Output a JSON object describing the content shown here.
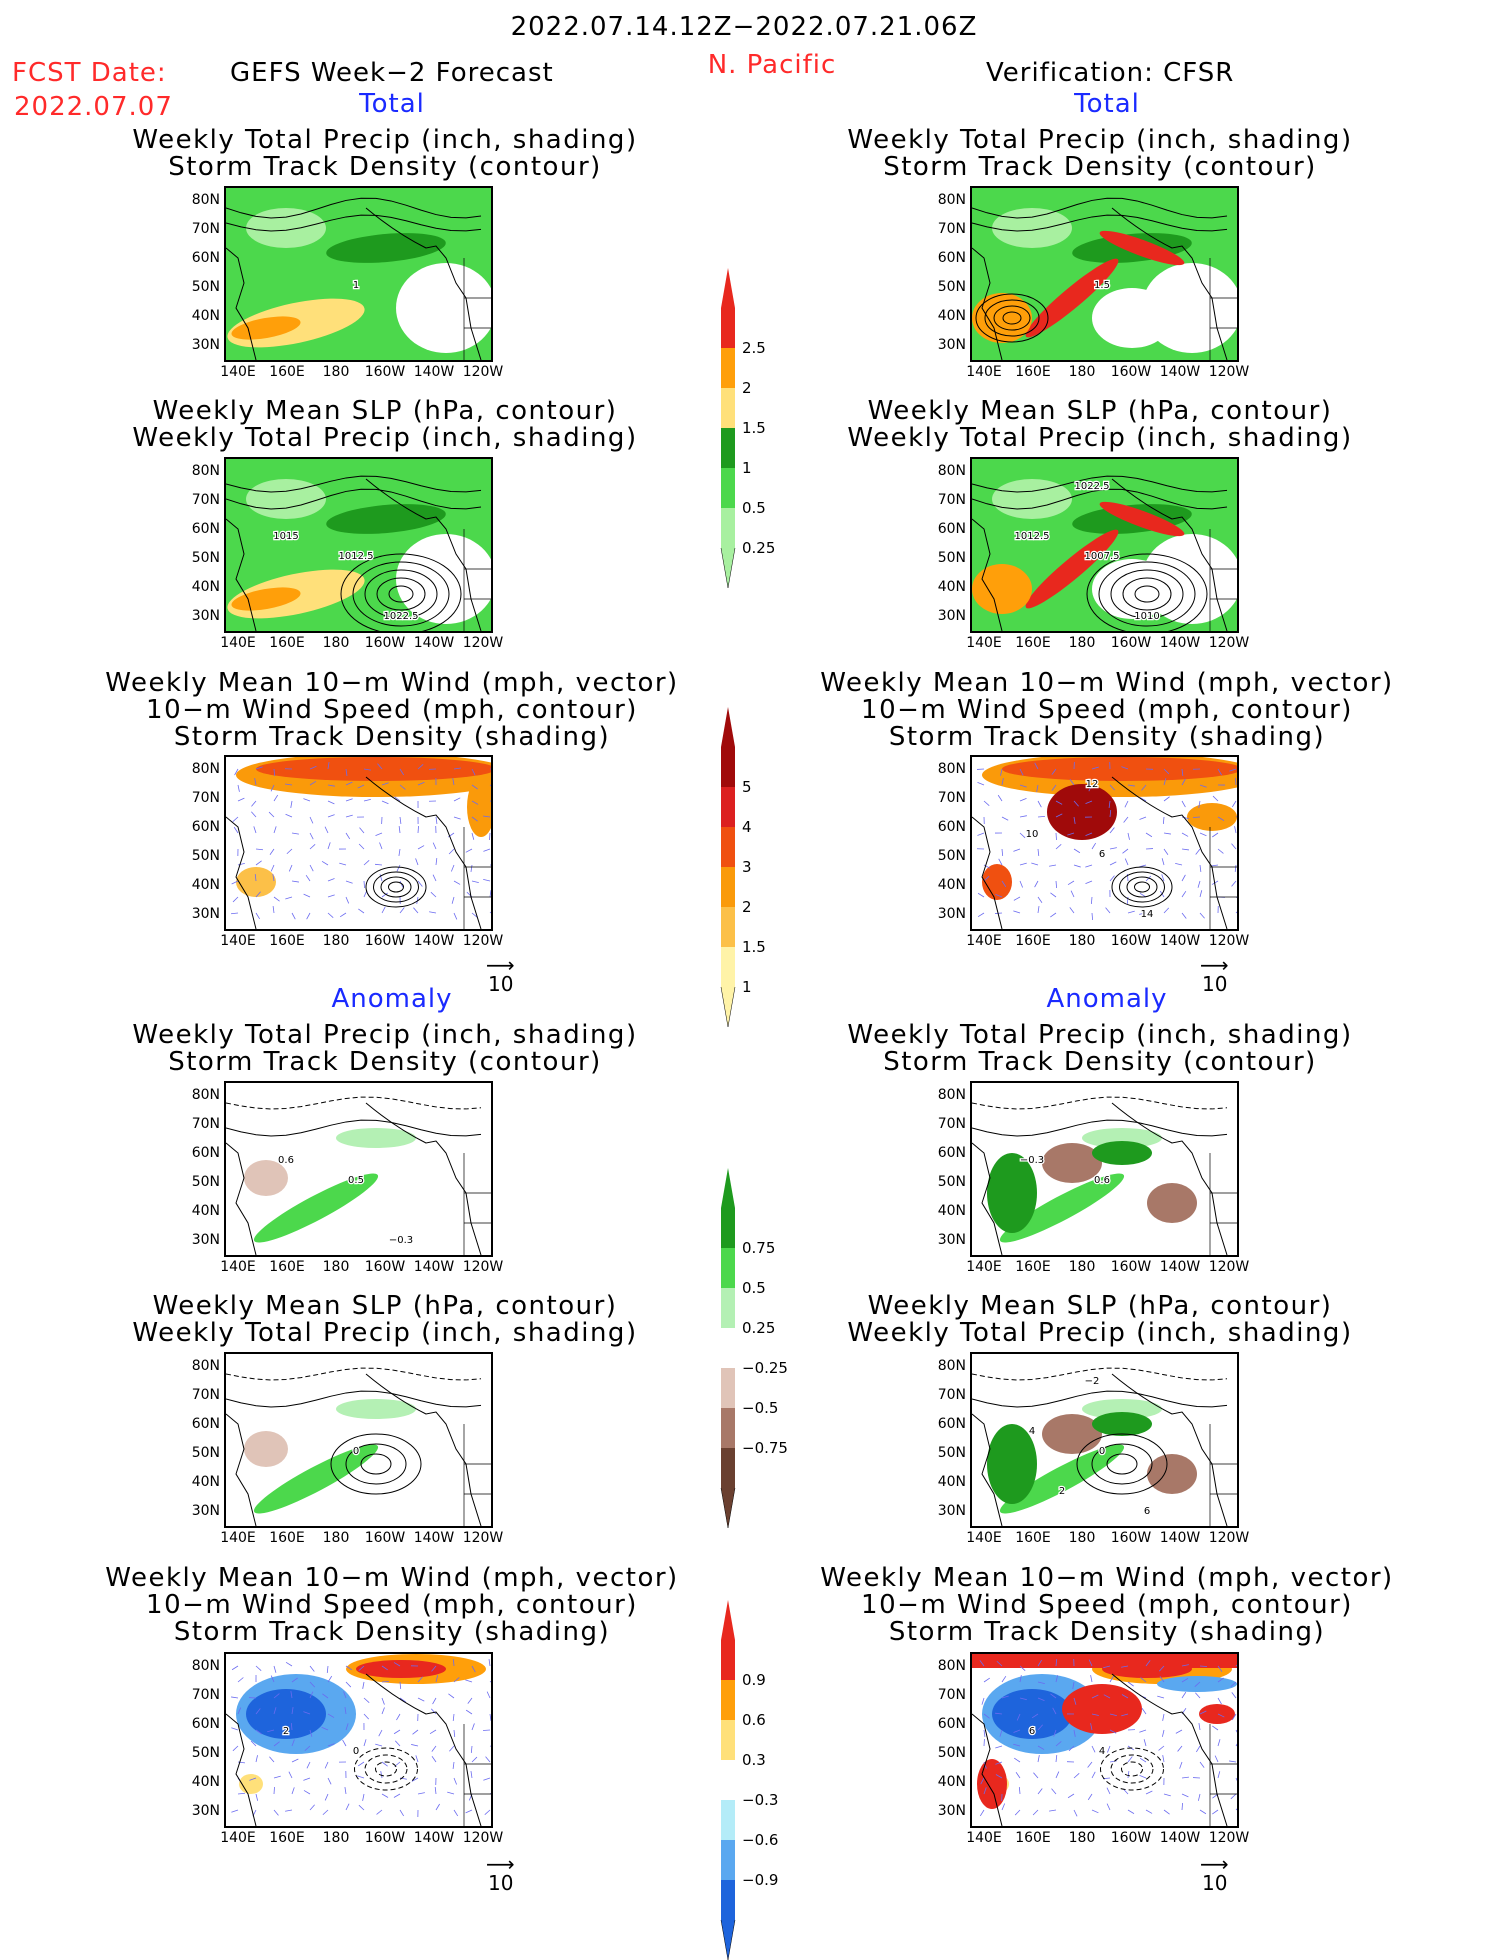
{
  "header": {
    "period": "2022.07.14.12Z−2022.07.21.06Z",
    "fcst_label": "FCST Date:",
    "fcst_date": "2022.07.07",
    "left_title": "GEFS Week−2 Forecast",
    "region": "N. Pacific",
    "right_title": "Verification: CFSR"
  },
  "sections": {
    "total": "Total",
    "anomaly": "Anomaly"
  },
  "panel_titles": {
    "precip_track": [
      "Weekly Total Precip (inch, shading)",
      "Storm Track Density (contour)"
    ],
    "slp_precip": [
      "Weekly Mean SLP (hPa, contour)",
      "Weekly Total Precip (inch, shading)"
    ],
    "wind_track": [
      "Weekly Mean 10−m Wind (mph, vector)",
      "10−m Wind Speed (mph, contour)",
      "Storm Track Density (shading)"
    ]
  },
  "axes": {
    "lat_ticks": [
      "80N",
      "70N",
      "60N",
      "50N",
      "40N",
      "30N"
    ],
    "lon_ticks": [
      "140E",
      "160E",
      "180",
      "160W",
      "140W",
      "120W"
    ]
  },
  "vector_reference": "10",
  "colorbars": {
    "precip_total": {
      "labels": [
        "2.5",
        "2",
        "1.5",
        "1",
        "0.5",
        "0.25"
      ],
      "colors": [
        "#e8281e",
        "#ff9f0a",
        "#ffe07a",
        "#1e9a1e",
        "#4cd84c",
        "#a8f0a0"
      ]
    },
    "track_total": {
      "labels": [
        "5",
        "4",
        "3",
        "2",
        "1.5",
        "1"
      ],
      "colors": [
        "#a00a0a",
        "#dc2020",
        "#f05010",
        "#fa9a0a",
        "#fcc048",
        "#fff3a8"
      ]
    },
    "precip_anom": {
      "labels": [
        "0.75",
        "0.5",
        "0.25",
        "−0.25",
        "−0.5",
        "−0.75"
      ],
      "colors": [
        "#1e9a1e",
        "#4cd84c",
        "#b4f0b4",
        "#ffffff",
        "#e0c4b8",
        "#a87868",
        "#6a4030"
      ]
    },
    "track_anom": {
      "labels": [
        "0.9",
        "0.6",
        "0.3",
        "−0.3",
        "−0.6",
        "−0.9"
      ],
      "colors": [
        "#e8281e",
        "#ff9f0a",
        "#ffe07a",
        "#ffffff",
        "#b4ecf8",
        "#5aa8f0",
        "#1e64dc"
      ]
    }
  },
  "contour_labels": {
    "left_precip_total": [
      "1"
    ],
    "right_precip_total": [
      "1.5"
    ],
    "left_slp_total": [
      "1012.5",
      "1015",
      "1022.5"
    ],
    "right_slp_total": [
      "1007.5",
      "1012.5",
      "1010",
      "1022.5"
    ],
    "right_wind_total": [
      "6",
      "10",
      "14",
      "12"
    ],
    "left_precip_anom": [
      "0.5",
      "0.6",
      "−0.3"
    ],
    "right_precip_anom": [
      "0.6",
      "−0.3"
    ],
    "left_slp_anom": [
      "0"
    ],
    "right_slp_anom": [
      "0",
      "4",
      "6",
      "−2",
      "2"
    ],
    "left_wind_anom": [
      "0",
      "2"
    ],
    "right_wind_anom": [
      "4",
      "6"
    ]
  }
}
